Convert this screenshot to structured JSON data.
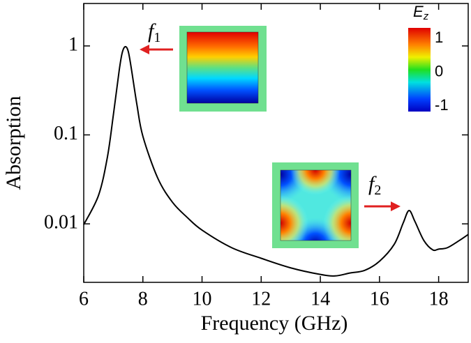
{
  "chart_data": {
    "type": "line",
    "xlabel": "Frequency (GHz)",
    "ylabel": "Absorption",
    "x": [
      6.0,
      6.5,
      6.8,
      7.0,
      7.2,
      7.3,
      7.4,
      7.5,
      7.6,
      7.8,
      8.0,
      8.5,
      9.0,
      9.5,
      10,
      11,
      12,
      13,
      14,
      14.5,
      15,
      15.5,
      16,
      16.5,
      16.8,
      17.0,
      17.2,
      17.5,
      17.8,
      18.0,
      18.3,
      18.7,
      19.0
    ],
    "series": [
      {
        "color": "#000000",
        "values": [
          0.0098,
          0.0209,
          0.0562,
          0.166,
          0.533,
          0.835,
          0.98,
          0.88,
          0.583,
          0.217,
          0.0965,
          0.0328,
          0.0175,
          0.0118,
          0.0085,
          0.0054,
          0.0041,
          0.0032,
          0.0027,
          0.0026,
          0.0028,
          0.003,
          0.0038,
          0.0059,
          0.0102,
          0.0141,
          0.0106,
          0.0065,
          0.0051,
          0.0052,
          0.0054,
          0.0065,
          0.0076
        ]
      }
    ],
    "xlim": [
      6,
      19
    ],
    "xticks": [
      6,
      8,
      10,
      12,
      14,
      16,
      18
    ],
    "ylim": [
      0.0022,
      3
    ],
    "yticks": [
      0.01,
      0.1,
      1
    ],
    "ylog": true,
    "annotations": [
      {
        "text": "f",
        "sub": "1"
      },
      {
        "text": "f",
        "sub": "2"
      }
    ],
    "colorbar": {
      "title": "E",
      "title_sub": "z",
      "ticks": [
        1,
        0,
        -1
      ]
    }
  }
}
